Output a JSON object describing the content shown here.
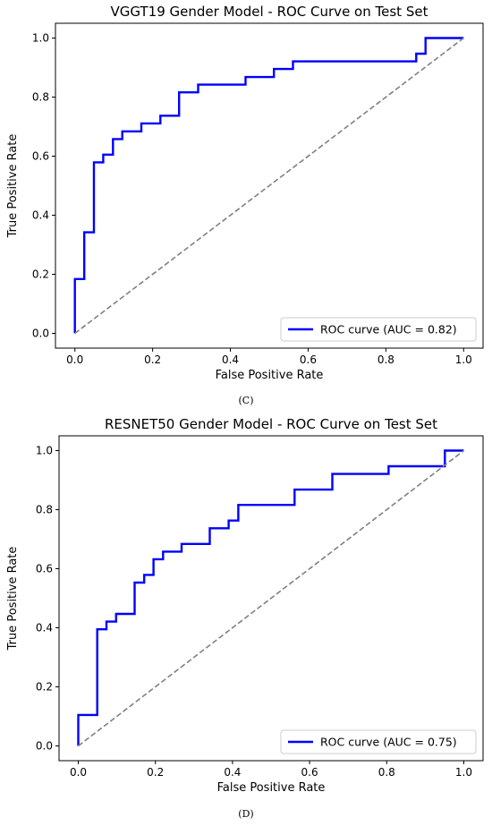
{
  "chart_data": [
    {
      "type": "line",
      "title": "VGGT19 Gender Model - ROC Curve on Test Set",
      "xlabel": "False Positive Rate",
      "ylabel": "True Positive Rate",
      "xlim": [
        -0.05,
        1.05
      ],
      "ylim": [
        -0.05,
        1.05
      ],
      "xticks": [
        "0.0",
        "0.2",
        "0.4",
        "0.6",
        "0.8",
        "1.0"
      ],
      "yticks": [
        "0.0",
        "0.2",
        "0.4",
        "0.6",
        "0.8",
        "1.0"
      ],
      "grid": false,
      "legend_position": "lower right",
      "caption": "(C)",
      "series": [
        {
          "name": "ROC curve (AUC = 0.82)",
          "color": "#0000ff",
          "style": "solid",
          "x": [
            0.0,
            0.0,
            0.024,
            0.024,
            0.049,
            0.049,
            0.073,
            0.073,
            0.098,
            0.098,
            0.122,
            0.122,
            0.171,
            0.171,
            0.22,
            0.22,
            0.268,
            0.268,
            0.317,
            0.317,
            0.439,
            0.439,
            0.512,
            0.512,
            0.561,
            0.561,
            0.878,
            0.878,
            0.902,
            0.902,
            1.0
          ],
          "y": [
            0.0,
            0.184,
            0.184,
            0.342,
            0.342,
            0.579,
            0.579,
            0.605,
            0.605,
            0.658,
            0.658,
            0.684,
            0.684,
            0.711,
            0.711,
            0.737,
            0.737,
            0.816,
            0.816,
            0.842,
            0.842,
            0.868,
            0.868,
            0.895,
            0.895,
            0.921,
            0.921,
            0.947,
            0.947,
            1.0,
            1.0
          ]
        },
        {
          "color": "#808080",
          "style": "dashed",
          "x": [
            0.0,
            1.0
          ],
          "y": [
            0.0,
            1.0
          ]
        }
      ]
    },
    {
      "type": "line",
      "title": "RESNET50 Gender Model - ROC Curve on Test Set",
      "xlabel": "False Positive Rate",
      "ylabel": "True Positive Rate",
      "xlim": [
        -0.05,
        1.05
      ],
      "ylim": [
        -0.05,
        1.05
      ],
      "xticks": [
        "0.0",
        "0.2",
        "0.4",
        "0.6",
        "0.8",
        "1.0"
      ],
      "yticks": [
        "0.0",
        "0.2",
        "0.4",
        "0.6",
        "0.8",
        "1.0"
      ],
      "grid": false,
      "legend_position": "lower right",
      "caption": "(D)",
      "series": [
        {
          "name": "ROC curve (AUC = 0.75)",
          "color": "#0000ff",
          "style": "solid",
          "x": [
            0.0,
            0.0,
            0.049,
            0.049,
            0.073,
            0.073,
            0.098,
            0.098,
            0.146,
            0.146,
            0.171,
            0.171,
            0.195,
            0.195,
            0.22,
            0.22,
            0.268,
            0.268,
            0.341,
            0.341,
            0.39,
            0.39,
            0.415,
            0.415,
            0.561,
            0.561,
            0.659,
            0.659,
            0.805,
            0.805,
            0.951,
            0.951,
            1.0
          ],
          "y": [
            0.0,
            0.105,
            0.105,
            0.395,
            0.395,
            0.421,
            0.421,
            0.447,
            0.447,
            0.553,
            0.553,
            0.579,
            0.579,
            0.632,
            0.632,
            0.658,
            0.658,
            0.684,
            0.684,
            0.737,
            0.737,
            0.763,
            0.763,
            0.816,
            0.816,
            0.868,
            0.868,
            0.921,
            0.921,
            0.947,
            0.947,
            1.0,
            1.0
          ]
        },
        {
          "color": "#808080",
          "style": "dashed",
          "x": [
            0.0,
            1.0
          ],
          "y": [
            0.0,
            1.0
          ]
        }
      ]
    }
  ]
}
